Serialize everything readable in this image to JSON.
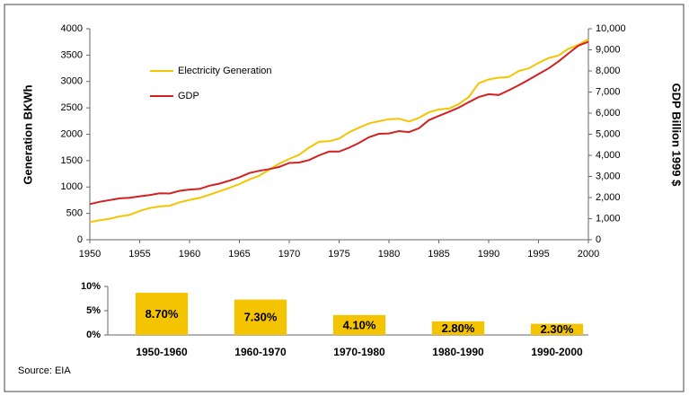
{
  "chart_data": [
    {
      "type": "line",
      "y_label": "Generation BKWh",
      "y2_label": "GDP Billion 1999 $",
      "x": [
        1950,
        1951,
        1952,
        1953,
        1954,
        1955,
        1956,
        1957,
        1958,
        1959,
        1960,
        1961,
        1962,
        1963,
        1964,
        1965,
        1966,
        1967,
        1968,
        1969,
        1970,
        1971,
        1972,
        1973,
        1974,
        1975,
        1976,
        1977,
        1978,
        1979,
        1980,
        1981,
        1982,
        1983,
        1984,
        1985,
        1986,
        1987,
        1988,
        1989,
        1990,
        1991,
        1992,
        1993,
        1994,
        1995,
        1996,
        1997,
        1998,
        1999,
        2000
      ],
      "xlim": [
        1950,
        2000
      ],
      "xticks": [
        1950,
        1955,
        1960,
        1965,
        1970,
        1975,
        1980,
        1985,
        1990,
        1995,
        2000
      ],
      "ylim": [
        0,
        4000
      ],
      "yticks": [
        0,
        500,
        1000,
        1500,
        2000,
        2500,
        3000,
        3500,
        4000
      ],
      "y2lim": [
        0,
        10000
      ],
      "y2ticks": [
        {
          "value": 0,
          "label": "0"
        },
        {
          "value": 1000,
          "label": "1,000"
        },
        {
          "value": 2000,
          "label": "2,000"
        },
        {
          "value": 3000,
          "label": "3,000"
        },
        {
          "value": 4000,
          "label": "4,000"
        },
        {
          "value": 5000,
          "label": "5,000"
        },
        {
          "value": 6000,
          "label": "6,000"
        },
        {
          "value": 7000,
          "label": "7,000"
        },
        {
          "value": 8000,
          "label": "8,000"
        },
        {
          "value": 9000,
          "label": "9,000"
        },
        {
          "value": 10000,
          "label": "10,000"
        }
      ],
      "legend": "upper left",
      "series": [
        {
          "name": "Electricity Generation",
          "color": "#f5c400",
          "values": [
            334,
            371,
            399,
            443,
            472,
            547,
            601,
            632,
            645,
            710,
            756,
            794,
            855,
            917,
            984,
            1055,
            1144,
            1214,
            1329,
            1445,
            1532,
            1613,
            1750,
            1861,
            1867,
            1918,
            2038,
            2124,
            2206,
            2247,
            2286,
            2295,
            2241,
            2310,
            2416,
            2470,
            2487,
            2572,
            2704,
            2967,
            3038,
            3073,
            3084,
            3197,
            3248,
            3353,
            3444,
            3492,
            3620,
            3695,
            3802
          ]
        },
        {
          "name": "GDP",
          "color": "#d42020",
          "axis": "y2",
          "values": [
            1690,
            1800,
            1880,
            1960,
            1990,
            2060,
            2120,
            2200,
            2190,
            2320,
            2380,
            2410,
            2560,
            2660,
            2800,
            2960,
            3160,
            3270,
            3350,
            3450,
            3640,
            3660,
            3780,
            4000,
            4180,
            4180,
            4360,
            4590,
            4860,
            5020,
            5040,
            5150,
            5100,
            5280,
            5670,
            5870,
            6060,
            6260,
            6520,
            6760,
            6900,
            6860,
            7080,
            7320,
            7580,
            7850,
            8120,
            8450,
            8830,
            9200,
            9380
          ]
        }
      ]
    },
    {
      "type": "bar",
      "categories": [
        "1950-1960",
        "1960-1970",
        "1970-1980",
        "1980-1990",
        "1990-2000"
      ],
      "values": [
        8.7,
        7.3,
        4.1,
        2.8,
        2.3
      ],
      "value_labels": [
        "8.70%",
        "7.30%",
        "4.10%",
        "2.80%",
        "2.30%"
      ],
      "color": "#f5c400",
      "ylim": [
        0,
        10
      ],
      "yticks": [
        {
          "value": 0,
          "label": "0%"
        },
        {
          "value": 5,
          "label": "5%"
        },
        {
          "value": 10,
          "label": "10%"
        }
      ]
    }
  ],
  "source": "Source: EIA"
}
